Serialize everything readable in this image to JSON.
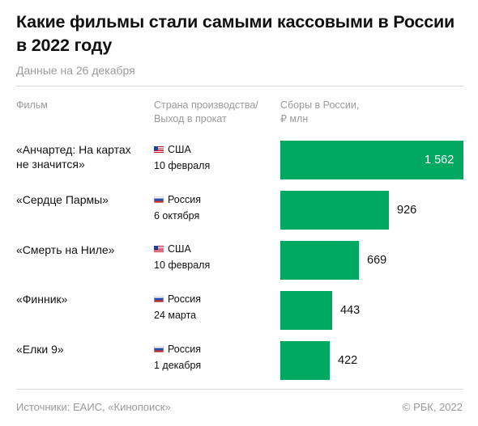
{
  "title": "Какие фильмы стали самыми кассовыми в России в 2022 году",
  "subtitle": "Данные на 26 декабря",
  "columns": {
    "film": "Фильм",
    "country_line1": "Страна производства/",
    "country_line2": "Выход в прокат",
    "gross_line1": "Сборы в России,",
    "gross_line2": "₽ млн"
  },
  "chart_data": {
    "type": "bar",
    "orientation": "horizontal",
    "categories": [
      "«Анчартед: На картах не значится»",
      "«Сердце Пармы»",
      "«Смерть на Ниле»",
      "«Финник»",
      "«Елки 9»"
    ],
    "values": [
      1562,
      926,
      669,
      443,
      422
    ],
    "value_labels": [
      "1 562",
      "926",
      "669",
      "443",
      "422"
    ],
    "unit": "₽ млн",
    "bar_color": "#00a962"
  },
  "rows": [
    {
      "film_line1": "«Анчартед: На картах",
      "film_line2": "не значится»",
      "country": "США",
      "flag": "us-flag-icon",
      "date": "10 февраля"
    },
    {
      "film_line1": "«Сердце Пармы»",
      "film_line2": "",
      "country": "Россия",
      "flag": "ru-flag-icon",
      "date": "6 октября"
    },
    {
      "film_line1": "«Смерть на Ниле»",
      "film_line2": "",
      "country": "США",
      "flag": "us-flag-icon",
      "date": "10 февраля"
    },
    {
      "film_line1": "«Финник»",
      "film_line2": "",
      "country": "Россия",
      "flag": "ru-flag-icon",
      "date": "24 марта"
    },
    {
      "film_line1": "«Елки 9»",
      "film_line2": "",
      "country": "Россия",
      "flag": "ru-flag-icon",
      "date": "1 декабря"
    }
  ],
  "footer": {
    "source": "Источники: ЕАИС, «Кинопоиск»",
    "copyright": "© РБК, 2022"
  }
}
